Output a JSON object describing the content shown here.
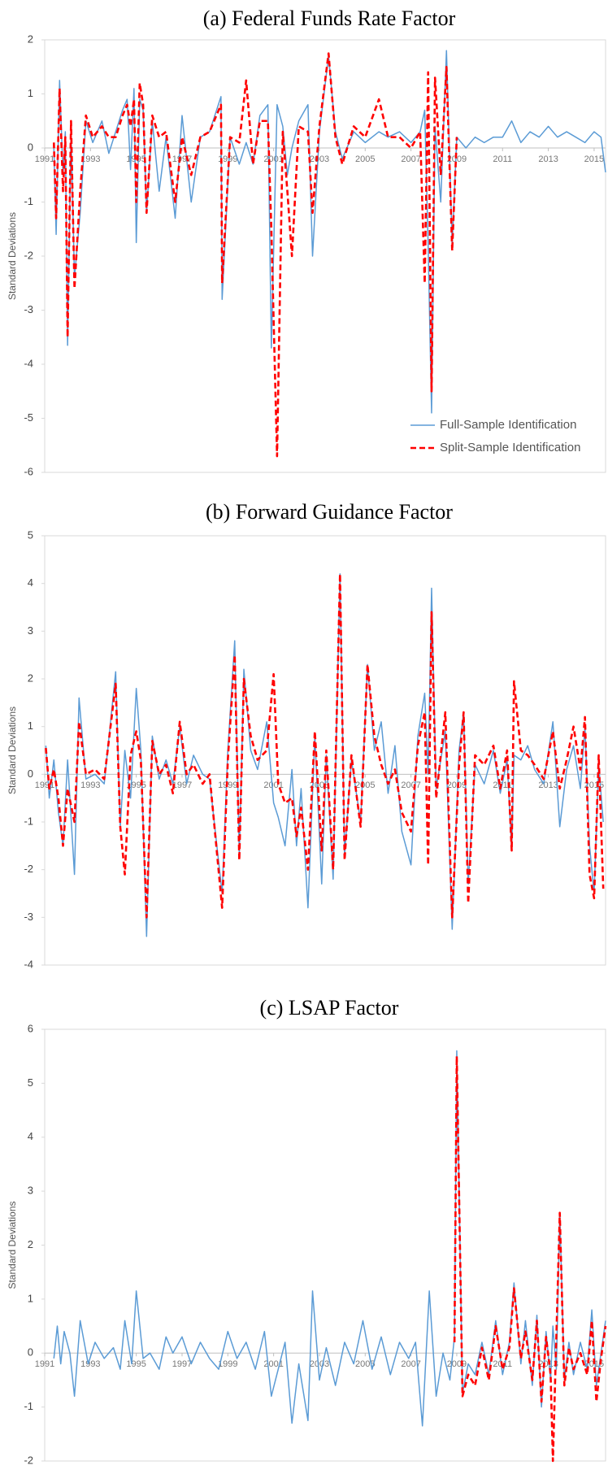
{
  "chart_data": [
    {
      "type": "line",
      "title": "(a) Federal Funds Rate Factor",
      "y_label": "Standard Deviations",
      "legend": "lower right",
      "xlim": [
        1991,
        2015.5
      ],
      "xticks": [
        1991,
        1993,
        1995,
        1997,
        1999,
        2001,
        2003,
        2005,
        2007,
        2009,
        2011,
        2013,
        2015
      ],
      "ylim": [
        -6,
        2
      ],
      "yticks": [
        -6,
        -5,
        -4,
        -3,
        -2,
        -1,
        0,
        1,
        2
      ],
      "x": [
        1991.4,
        1991.5,
        1991.65,
        1991.8,
        1991.9,
        1992.0,
        1992.15,
        1992.3,
        1992.55,
        1992.8,
        1993.1,
        1993.5,
        1993.8,
        1994.1,
        1994.4,
        1994.6,
        1994.75,
        1994.9,
        1995.0,
        1995.15,
        1995.3,
        1995.45,
        1995.7,
        1996.0,
        1996.3,
        1996.7,
        1997.0,
        1997.4,
        1997.8,
        1998.2,
        1998.7,
        1998.75,
        1999.1,
        1999.5,
        1999.8,
        2000.1,
        2000.4,
        2000.75,
        2000.9,
        2001.15,
        2001.4,
        2001.6,
        2001.8,
        2002.1,
        2002.5,
        2002.7,
        2003.0,
        2003.4,
        2003.7,
        2004.0,
        2004.5,
        2005.0,
        2005.6,
        2006.0,
        2006.5,
        2007.0,
        2007.4,
        2007.6,
        2007.75,
        2007.9,
        2008.05,
        2008.3,
        2008.55,
        2008.8,
        2009.0,
        2009.4,
        2009.8,
        2010.2,
        2010.6,
        2011.0,
        2011.4,
        2011.8,
        2012.2,
        2012.6,
        2013.0,
        2013.4,
        2013.8,
        2014.2,
        2014.6,
        2015.0,
        2015.3,
        2015.5
      ],
      "series": [
        {
          "name": "Full-Sample Identification",
          "color": "#5b9bd5",
          "dash": false,
          "values": [
            0.0,
            -1.6,
            1.25,
            -0.5,
            0.3,
            -3.65,
            0.3,
            -2.4,
            -1.2,
            0.5,
            0.1,
            0.5,
            -0.1,
            0.3,
            0.7,
            0.9,
            -0.4,
            1.1,
            -1.75,
            0.9,
            0.7,
            -1.2,
            0.5,
            -0.8,
            0.2,
            -1.3,
            0.6,
            -1.0,
            0.2,
            0.3,
            0.95,
            -2.8,
            0.2,
            -0.3,
            0.1,
            -0.3,
            0.6,
            0.8,
            -3.7,
            0.8,
            0.4,
            -0.5,
            0.0,
            0.5,
            0.8,
            -2.0,
            0.3,
            1.7,
            0.3,
            -0.2,
            0.3,
            0.1,
            0.3,
            0.2,
            0.3,
            0.1,
            0.3,
            0.7,
            -1.8,
            -4.9,
            0.4,
            -1.0,
            1.8,
            -1.8,
            0.2,
            0.0,
            0.2,
            0.1,
            0.2,
            0.2,
            0.5,
            0.1,
            0.3,
            0.2,
            0.4,
            0.2,
            0.3,
            0.2,
            0.1,
            0.3,
            0.2,
            -0.45
          ]
        },
        {
          "name": "Split-Sample Identification",
          "color": "#ff0000",
          "dash": true,
          "values": [
            0.1,
            -1.3,
            1.1,
            -0.8,
            0.2,
            -3.5,
            0.5,
            -2.6,
            -0.8,
            0.6,
            0.2,
            0.4,
            0.2,
            0.2,
            0.6,
            0.8,
            0.4,
            0.9,
            -1.0,
            1.2,
            0.8,
            -1.2,
            0.6,
            0.2,
            0.3,
            -1.0,
            0.2,
            -0.5,
            0.2,
            0.3,
            0.8,
            -2.5,
            0.2,
            0.1,
            1.25,
            -0.3,
            0.5,
            0.5,
            -1.5,
            -5.7,
            0.3,
            -0.8,
            -2.0,
            0.4,
            0.3,
            -1.2,
            0.4,
            1.75,
            0.2,
            -0.3,
            0.4,
            0.2,
            0.9,
            0.2,
            0.2,
            0.0,
            0.3,
            -2.5,
            1.4,
            -4.5,
            1.3,
            -0.5,
            1.5,
            -1.9,
            0.2,
            null,
            null,
            null,
            null,
            null,
            null,
            null,
            null,
            null,
            null,
            null,
            null,
            null,
            null,
            null,
            null,
            null
          ]
        }
      ]
    },
    {
      "type": "line",
      "title": "(b) Forward Guidance Factor",
      "y_label": "Standard Deviations",
      "xlim": [
        1991,
        2015.5
      ],
      "xticks": [
        1991,
        1993,
        1995,
        1997,
        1999,
        2001,
        2003,
        2005,
        2007,
        2009,
        2011,
        2013,
        2015
      ],
      "ylim": [
        -4,
        5
      ],
      "yticks": [
        -4,
        -3,
        -2,
        -1,
        0,
        1,
        2,
        3,
        4,
        5
      ],
      "x": [
        1991.05,
        1991.2,
        1991.4,
        1991.6,
        1991.8,
        1992.0,
        1992.3,
        1992.5,
        1992.8,
        1993.2,
        1993.6,
        1994.1,
        1994.3,
        1994.5,
        1994.75,
        1995.0,
        1995.2,
        1995.45,
        1995.7,
        1996.0,
        1996.3,
        1996.6,
        1996.9,
        1997.2,
        1997.5,
        1997.9,
        1998.2,
        1998.75,
        1999.0,
        1999.3,
        1999.5,
        1999.7,
        2000.0,
        2000.3,
        2000.7,
        2001.0,
        2001.2,
        2001.5,
        2001.8,
        2002.0,
        2002.2,
        2002.5,
        2002.8,
        2003.1,
        2003.3,
        2003.6,
        2003.9,
        2004.1,
        2004.4,
        2004.8,
        2005.1,
        2005.4,
        2005.7,
        2006.0,
        2006.3,
        2006.6,
        2007.0,
        2007.3,
        2007.6,
        2007.75,
        2007.9,
        2008.1,
        2008.5,
        2008.8,
        2009.1,
        2009.3,
        2009.5,
        2009.8,
        2010.2,
        2010.6,
        2010.9,
        2011.2,
        2011.4,
        2011.5,
        2011.8,
        2012.1,
        2012.4,
        2012.8,
        2013.2,
        2013.5,
        2013.8,
        2014.1,
        2014.4,
        2014.6,
        2014.8,
        2015.0,
        2015.2,
        2015.4
      ],
      "series": [
        {
          "color": "#5b9bd5",
          "dash": false,
          "values": [
            0.6,
            -0.5,
            0.3,
            -0.8,
            -1.5,
            0.3,
            -2.1,
            1.6,
            -0.1,
            0.0,
            -0.2,
            2.15,
            -1.1,
            0.5,
            -0.5,
            1.8,
            0.5,
            -3.4,
            0.8,
            -0.1,
            0.3,
            -0.2,
            1.0,
            -0.2,
            0.4,
            0.0,
            -0.1,
            -2.5,
            0.5,
            2.8,
            -1.7,
            2.2,
            0.5,
            0.1,
            1.1,
            -0.6,
            -0.9,
            -1.5,
            0.1,
            -1.5,
            -0.3,
            -2.8,
            0.8,
            -2.3,
            0.4,
            -2.2,
            4.2,
            -1.7,
            0.3,
            -1.0,
            2.3,
            0.5,
            1.1,
            -0.4,
            0.6,
            -1.2,
            -1.9,
            0.8,
            1.7,
            0.0,
            3.9,
            -0.3,
            0.9,
            -3.25,
            0.5,
            1.3,
            -2.3,
            0.2,
            -0.2,
            0.5,
            -0.4,
            0.3,
            -1.6,
            0.4,
            0.3,
            0.6,
            0.1,
            -0.2,
            1.1,
            -1.1,
            0.1,
            0.6,
            -0.3,
            1.0,
            -1.5,
            -2.5,
            0.2,
            -1.0
          ]
        },
        {
          "color": "#ff0000",
          "dash": true,
          "values": [
            0.55,
            -0.3,
            0.1,
            -0.5,
            -1.5,
            -0.3,
            -1.0,
            1.1,
            0.0,
            0.1,
            -0.1,
            1.9,
            -1.1,
            -2.1,
            0.4,
            0.9,
            0.3,
            -3.0,
            0.7,
            0.0,
            0.2,
            -0.4,
            1.1,
            0.0,
            0.2,
            -0.2,
            0.0,
            -2.8,
            0.3,
            2.5,
            -1.8,
            2.0,
            0.8,
            0.3,
            0.5,
            2.1,
            -0.2,
            -0.6,
            -0.5,
            -1.3,
            -0.7,
            -2.0,
            0.9,
            -1.6,
            0.5,
            -2.0,
            4.2,
            -1.8,
            0.4,
            -1.1,
            2.3,
            0.8,
            0.2,
            -0.2,
            0.1,
            -0.8,
            -1.2,
            0.6,
            1.3,
            -1.9,
            3.4,
            -0.5,
            1.3,
            -3.0,
            0.2,
            1.3,
            -2.7,
            0.4,
            0.2,
            0.6,
            -0.3,
            0.5,
            -1.6,
            1.95,
            0.5,
            0.4,
            0.2,
            -0.1,
            0.9,
            -0.3,
            0.3,
            1.0,
            0.1,
            1.2,
            -2.1,
            -2.6,
            0.4,
            -2.4
          ]
        }
      ]
    },
    {
      "type": "line",
      "title": "(c) LSAP Factor",
      "y_label": "Standard Deviations",
      "xlim": [
        1991,
        2015.5
      ],
      "xticks": [
        1991,
        1993,
        1995,
        1997,
        1999,
        2001,
        2003,
        2005,
        2007,
        2009,
        2011,
        2013,
        2015
      ],
      "ylim": [
        -2,
        6
      ],
      "yticks": [
        -2,
        -1,
        0,
        1,
        2,
        3,
        4,
        5,
        6
      ],
      "x": [
        1991.4,
        1991.55,
        1991.7,
        1991.85,
        1992.1,
        1992.3,
        1992.55,
        1992.9,
        1993.2,
        1993.6,
        1994.0,
        1994.3,
        1994.5,
        1994.8,
        1995.0,
        1995.3,
        1995.6,
        1996.0,
        1996.3,
        1996.6,
        1997.0,
        1997.4,
        1997.8,
        1998.2,
        1998.6,
        1999.0,
        1999.4,
        1999.8,
        2000.2,
        2000.6,
        2000.9,
        2001.2,
        2001.5,
        2001.8,
        2002.1,
        2002.5,
        2002.7,
        2003.0,
        2003.3,
        2003.7,
        2004.1,
        2004.5,
        2004.9,
        2005.3,
        2005.7,
        2006.1,
        2006.5,
        2006.9,
        2007.2,
        2007.5,
        2007.8,
        2008.1,
        2008.4,
        2008.7,
        2008.9,
        2009.0,
        2009.25,
        2009.5,
        2009.8,
        2010.1,
        2010.4,
        2010.7,
        2011.0,
        2011.3,
        2011.5,
        2011.8,
        2012.0,
        2012.3,
        2012.5,
        2012.7,
        2012.9,
        2013.1,
        2013.2,
        2013.35,
        2013.5,
        2013.7,
        2013.9,
        2014.1,
        2014.4,
        2014.7,
        2014.9,
        2015.1,
        2015.3,
        2015.5
      ],
      "series": [
        {
          "color": "#5b9bd5",
          "dash": false,
          "values": [
            -0.1,
            0.5,
            -0.2,
            0.4,
            0.0,
            -0.8,
            0.6,
            -0.2,
            0.2,
            -0.1,
            0.1,
            -0.3,
            0.6,
            -0.2,
            1.15,
            -0.1,
            0.0,
            -0.3,
            0.3,
            0.0,
            0.3,
            -0.2,
            0.2,
            -0.1,
            -0.3,
            0.4,
            -0.1,
            0.2,
            -0.3,
            0.4,
            -0.8,
            -0.3,
            0.2,
            -1.3,
            -0.2,
            -1.25,
            1.15,
            -0.5,
            0.1,
            -0.6,
            0.2,
            -0.2,
            0.6,
            -0.3,
            0.3,
            -0.4,
            0.2,
            -0.1,
            0.2,
            -1.35,
            1.15,
            -0.8,
            0.0,
            -0.5,
            0.3,
            5.6,
            -0.75,
            -0.2,
            -0.4,
            0.2,
            -0.4,
            0.6,
            -0.4,
            0.2,
            1.3,
            -0.2,
            0.6,
            -0.6,
            0.7,
            -1.0,
            0.4,
            -0.5,
            0.5,
            -0.3,
            2.6,
            -0.5,
            0.2,
            -0.4,
            0.2,
            -0.3,
            0.8,
            -0.6,
            0.0,
            0.6
          ]
        },
        {
          "color": "#ff0000",
          "dash": true,
          "values": [
            null,
            null,
            null,
            null,
            null,
            null,
            null,
            null,
            null,
            null,
            null,
            null,
            null,
            null,
            null,
            null,
            null,
            null,
            null,
            null,
            null,
            null,
            null,
            null,
            null,
            null,
            null,
            null,
            null,
            null,
            null,
            null,
            null,
            null,
            null,
            null,
            null,
            null,
            null,
            null,
            null,
            null,
            null,
            null,
            null,
            null,
            null,
            null,
            null,
            null,
            null,
            null,
            null,
            null,
            0.2,
            5.5,
            -0.8,
            -0.4,
            -0.6,
            0.1,
            -0.5,
            0.5,
            -0.3,
            0.1,
            1.2,
            -0.1,
            0.4,
            -0.5,
            0.6,
            -0.9,
            0.3,
            -0.4,
            -2.0,
            0.3,
            2.6,
            -0.6,
            0.1,
            -0.3,
            0.0,
            -0.4,
            0.6,
            -0.9,
            -0.1,
            0.5
          ]
        }
      ]
    }
  ]
}
